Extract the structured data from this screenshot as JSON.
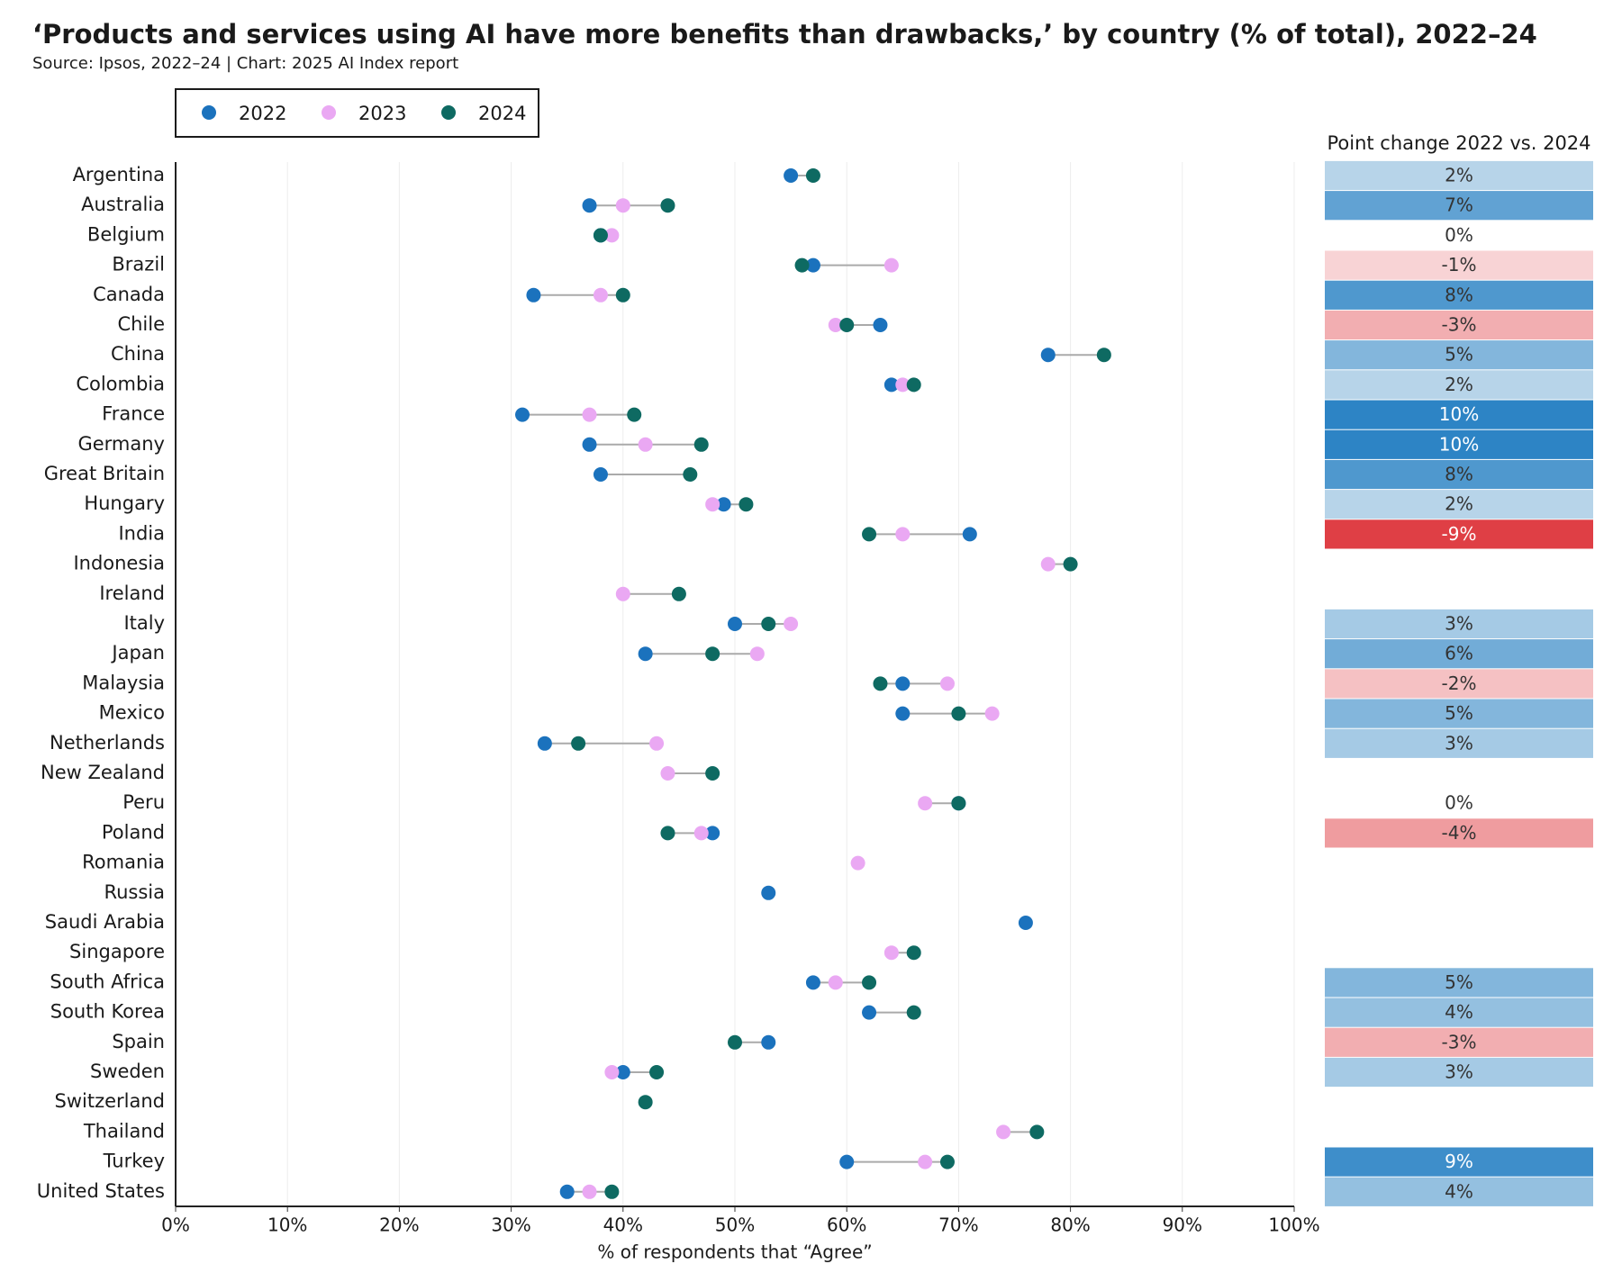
{
  "chart_data": {
    "type": "dot",
    "title": "‘Products and services using AI have more benefits than drawbacks,’ by country (% of total), 2022–24",
    "subtitle": "Source: Ipsos, 2022–24 | Chart: 2025 AI Index report",
    "x_label": "% of respondents that “Agree”",
    "categories": [
      "Argentina",
      "Australia",
      "Belgium",
      "Brazil",
      "Canada",
      "Chile",
      "China",
      "Colombia",
      "France",
      "Germany",
      "Great Britain",
      "Hungary",
      "India",
      "Indonesia",
      "Ireland",
      "Italy",
      "Japan",
      "Malaysia",
      "Mexico",
      "Netherlands",
      "New Zealand",
      "Peru",
      "Poland",
      "Romania",
      "Russia",
      "Saudi Arabia",
      "Singapore",
      "South Africa",
      "South Korea",
      "Spain",
      "Sweden",
      "Switzerland",
      "Thailand",
      "Turkey",
      "United States"
    ],
    "series": [
      {
        "name": "2022",
        "color": "#1b72bd",
        "values": [
          55,
          37,
          38,
          57,
          32,
          63,
          78,
          64,
          31,
          37,
          38,
          49,
          71,
          null,
          null,
          50,
          42,
          65,
          65,
          33,
          null,
          70,
          48,
          null,
          53,
          76,
          null,
          57,
          62,
          53,
          40,
          null,
          null,
          60,
          35
        ]
      },
      {
        "name": "2023",
        "color": "#eaa8f3",
        "values": [
          null,
          40,
          39,
          64,
          38,
          59,
          null,
          65,
          37,
          42,
          null,
          48,
          65,
          78,
          40,
          55,
          52,
          69,
          73,
          43,
          44,
          67,
          47,
          61,
          null,
          null,
          64,
          59,
          null,
          null,
          39,
          null,
          74,
          67,
          37
        ]
      },
      {
        "name": "2024",
        "color": "#0e6a62",
        "values": [
          57,
          44,
          38,
          56,
          40,
          60,
          83,
          66,
          41,
          47,
          46,
          51,
          62,
          80,
          45,
          53,
          48,
          63,
          70,
          36,
          48,
          70,
          44,
          null,
          null,
          null,
          66,
          62,
          66,
          50,
          43,
          42,
          77,
          69,
          39
        ]
      }
    ],
    "change_title": "Point change 2022 vs. 2024",
    "change": {
      "values": [
        2,
        7,
        0,
        -1,
        8,
        -3,
        5,
        2,
        10,
        10,
        8,
        2,
        -9,
        null,
        null,
        3,
        6,
        -2,
        5,
        3,
        null,
        0,
        -4,
        null,
        null,
        null,
        null,
        5,
        4,
        -3,
        3,
        null,
        null,
        9,
        4
      ],
      "value_labels": [
        "2%",
        "7%",
        "0%",
        "-1%",
        "8%",
        "-3%",
        "5%",
        "2%",
        "10%",
        "10%",
        "8%",
        "2%",
        "-9%",
        null,
        null,
        "3%",
        "6%",
        "-2%",
        "5%",
        "3%",
        null,
        "0%",
        "-4%",
        null,
        null,
        null,
        null,
        "5%",
        "4%",
        "-3%",
        "3%",
        null,
        null,
        "9%",
        "4%"
      ]
    },
    "xlim": [
      0,
      100
    ],
    "xticks": [
      {
        "value": 0,
        "label": "0%"
      },
      {
        "value": 10,
        "label": "10%"
      },
      {
        "value": 20,
        "label": "20%"
      },
      {
        "value": 30,
        "label": "30%"
      },
      {
        "value": 40,
        "label": "40%"
      },
      {
        "value": 50,
        "label": "50%"
      },
      {
        "value": 60,
        "label": "60%"
      },
      {
        "value": 70,
        "label": "70%"
      },
      {
        "value": 80,
        "label": "80%"
      },
      {
        "value": 90,
        "label": "90%"
      },
      {
        "value": 100,
        "label": "100%"
      }
    ],
    "grid": true,
    "legend_position": "top-left"
  }
}
